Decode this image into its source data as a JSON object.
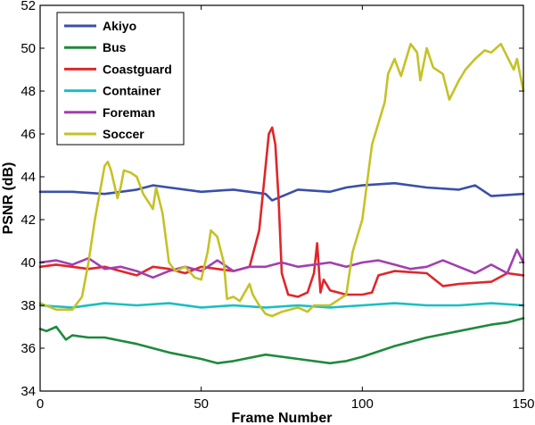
{
  "chart_data": {
    "type": "line",
    "xlabel": "Frame Number",
    "ylabel": "PSNR (dB)",
    "xlim": [
      0,
      150
    ],
    "ylim": [
      34,
      52
    ],
    "xticks": [
      0,
      50,
      100,
      150
    ],
    "yticks": [
      34,
      36,
      38,
      40,
      42,
      44,
      46,
      48,
      50,
      52
    ],
    "grid": false,
    "legend_position": "top-left",
    "series": [
      {
        "name": "Akiyo",
        "color": "#3b4fa8",
        "x": [
          0,
          10,
          20,
          30,
          35,
          40,
          50,
          60,
          70,
          72,
          80,
          90,
          95,
          100,
          110,
          120,
          130,
          135,
          140,
          150
        ],
        "y": [
          43.3,
          43.3,
          43.2,
          43.4,
          43.6,
          43.5,
          43.3,
          43.4,
          43.2,
          42.9,
          43.4,
          43.3,
          43.5,
          43.6,
          43.7,
          43.5,
          43.4,
          43.6,
          43.1,
          43.2
        ]
      },
      {
        "name": "Bus",
        "color": "#1f8a3c",
        "x": [
          0,
          2,
          5,
          8,
          10,
          15,
          20,
          30,
          40,
          50,
          55,
          60,
          70,
          80,
          90,
          95,
          100,
          110,
          120,
          130,
          140,
          145,
          150
        ],
        "y": [
          36.9,
          36.8,
          37.0,
          36.4,
          36.6,
          36.5,
          36.5,
          36.2,
          35.8,
          35.5,
          35.3,
          35.4,
          35.7,
          35.5,
          35.3,
          35.4,
          35.6,
          36.1,
          36.5,
          36.8,
          37.1,
          37.2,
          37.4
        ]
      },
      {
        "name": "Coastguard",
        "color": "#e0262a",
        "x": [
          0,
          5,
          10,
          15,
          20,
          25,
          30,
          35,
          40,
          45,
          50,
          55,
          60,
          65,
          68,
          70,
          71,
          72,
          73,
          74,
          75,
          77,
          80,
          83,
          85,
          86,
          87,
          88,
          90,
          95,
          100,
          103,
          105,
          110,
          120,
          125,
          130,
          140,
          145,
          150
        ],
        "y": [
          39.8,
          39.9,
          39.8,
          39.7,
          39.8,
          39.6,
          39.4,
          39.8,
          39.7,
          39.5,
          39.8,
          39.7,
          39.6,
          39.8,
          41.5,
          44.5,
          46.0,
          46.3,
          45.5,
          43.0,
          39.5,
          38.5,
          38.4,
          38.6,
          39.5,
          40.9,
          38.6,
          39.2,
          38.7,
          38.5,
          38.5,
          38.6,
          39.4,
          39.6,
          39.5,
          38.9,
          39.0,
          39.1,
          39.5,
          39.4
        ]
      },
      {
        "name": "Container",
        "color": "#1bbfc4",
        "x": [
          0,
          10,
          20,
          30,
          40,
          50,
          60,
          70,
          80,
          90,
          100,
          110,
          120,
          130,
          140,
          150
        ],
        "y": [
          38.0,
          37.9,
          38.1,
          38.0,
          38.1,
          37.9,
          38.0,
          37.9,
          38.0,
          37.9,
          38.0,
          38.1,
          38.0,
          38.0,
          38.1,
          38.0
        ]
      },
      {
        "name": "Foreman",
        "color": "#a23fb0",
        "x": [
          0,
          5,
          10,
          15,
          20,
          25,
          30,
          35,
          40,
          45,
          50,
          55,
          60,
          65,
          70,
          75,
          80,
          85,
          90,
          95,
          100,
          105,
          110,
          115,
          120,
          125,
          130,
          135,
          140,
          145,
          148,
          150
        ],
        "y": [
          40.0,
          40.1,
          39.9,
          40.2,
          39.7,
          39.8,
          39.6,
          39.3,
          39.6,
          39.8,
          39.6,
          40.1,
          39.6,
          39.8,
          39.8,
          40.0,
          39.8,
          39.9,
          40.0,
          39.8,
          40.0,
          40.1,
          39.9,
          39.7,
          39.8,
          40.1,
          39.8,
          39.5,
          39.9,
          39.5,
          40.6,
          40.0
        ]
      },
      {
        "name": "Soccer",
        "color": "#c5c227",
        "x": [
          0,
          5,
          10,
          13,
          15,
          17,
          20,
          21,
          22,
          24,
          25,
          26,
          28,
          30,
          32,
          35,
          36,
          38,
          40,
          42,
          45,
          48,
          50,
          52,
          53,
          55,
          57,
          58,
          60,
          62,
          65,
          66,
          68,
          70,
          72,
          75,
          80,
          83,
          85,
          90,
          95,
          97,
          100,
          103,
          105,
          107,
          108,
          110,
          112,
          115,
          117,
          118,
          120,
          122,
          125,
          127,
          130,
          132,
          135,
          138,
          140,
          143,
          145,
          147,
          148,
          150
        ],
        "y": [
          38.1,
          37.8,
          37.8,
          38.4,
          40.0,
          42.0,
          44.5,
          44.7,
          44.3,
          43.0,
          43.5,
          44.3,
          44.2,
          44.0,
          43.2,
          42.5,
          43.5,
          42.3,
          40.0,
          39.6,
          39.8,
          39.3,
          39.2,
          40.5,
          41.5,
          41.2,
          40.0,
          38.3,
          38.4,
          38.2,
          39.0,
          38.5,
          38.0,
          37.6,
          37.5,
          37.7,
          37.9,
          37.7,
          38.0,
          38.0,
          38.5,
          40.5,
          42.0,
          45.5,
          46.5,
          47.5,
          48.8,
          49.5,
          48.7,
          50.2,
          49.8,
          48.5,
          50.0,
          49.1,
          48.8,
          47.6,
          48.5,
          49.0,
          49.5,
          49.9,
          49.8,
          50.2,
          49.6,
          49.0,
          49.5,
          48.0
        ]
      }
    ]
  }
}
